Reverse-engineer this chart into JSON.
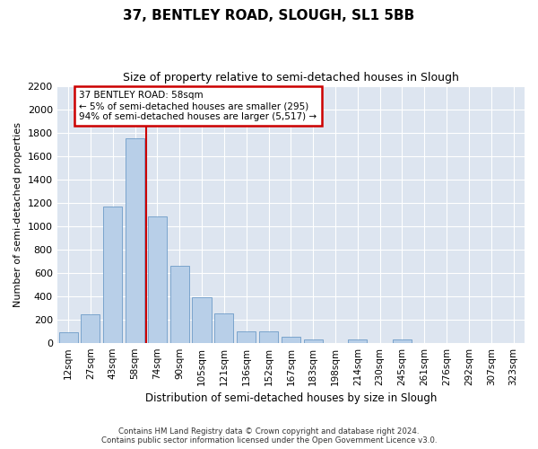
{
  "title": "37, BENTLEY ROAD, SLOUGH, SL1 5BB",
  "subtitle": "Size of property relative to semi-detached houses in Slough",
  "xlabel": "Distribution of semi-detached houses by size in Slough",
  "ylabel": "Number of semi-detached properties",
  "footer_line1": "Contains HM Land Registry data © Crown copyright and database right 2024.",
  "footer_line2": "Contains public sector information licensed under the Open Government Licence v3.0.",
  "categories": [
    "12sqm",
    "27sqm",
    "43sqm",
    "58sqm",
    "74sqm",
    "90sqm",
    "105sqm",
    "121sqm",
    "136sqm",
    "152sqm",
    "167sqm",
    "183sqm",
    "198sqm",
    "214sqm",
    "230sqm",
    "245sqm",
    "261sqm",
    "276sqm",
    "292sqm",
    "307sqm",
    "323sqm"
  ],
  "bar_values": [
    90,
    240,
    1170,
    1750,
    1080,
    660,
    390,
    250,
    100,
    100,
    50,
    30,
    0,
    30,
    0,
    30,
    0,
    0,
    0,
    0,
    0
  ],
  "bar_color": "#b8cfe8",
  "bar_edge_color": "#5a8fc0",
  "bg_color": "#dde5f0",
  "grid_color": "#ffffff",
  "property_line_color": "#cc0000",
  "property_line_index": 3,
  "annotation_title": "37 BENTLEY ROAD: 58sqm",
  "annotation_line1": "← 5% of semi-detached houses are smaller (295)",
  "annotation_line2": "94% of semi-detached houses are larger (5,517) →",
  "annotation_box_color": "#cc0000",
  "ylim": [
    0,
    2200
  ],
  "yticks": [
    0,
    200,
    400,
    600,
    800,
    1000,
    1200,
    1400,
    1600,
    1800,
    2000,
    2200
  ]
}
